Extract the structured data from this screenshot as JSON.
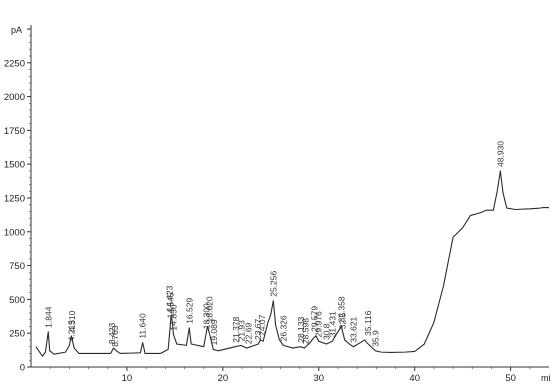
{
  "chart_data": {
    "type": "line",
    "title": "",
    "xlabel": "",
    "ylabel": "",
    "y_unit": "pA",
    "x_unit": "mi",
    "xlim": [
      0,
      54
    ],
    "ylim": [
      0,
      2500
    ],
    "x_ticks": [
      10,
      20,
      30,
      40,
      50
    ],
    "y_ticks": [
      0,
      250,
      500,
      750,
      1000,
      1250,
      1500,
      1750,
      2000,
      2250,
      2500
    ],
    "grid": false,
    "legend": "none",
    "colors": {
      "trace": "#2b2b2b",
      "axis": "#333333",
      "text": "#222222"
    },
    "series": [
      {
        "values": [
          [
            0.5,
            150
          ],
          [
            1.2,
            80
          ],
          [
            1.5,
            110
          ],
          [
            1.8,
            260
          ],
          [
            1.95,
            120
          ],
          [
            2.4,
            95
          ],
          [
            3.6,
            110
          ],
          [
            4.0,
            160
          ],
          [
            4.2,
            230
          ],
          [
            4.5,
            140
          ],
          [
            5.0,
            100
          ],
          [
            8.3,
            100
          ],
          [
            8.6,
            140
          ],
          [
            8.9,
            120
          ],
          [
            9.3,
            100
          ],
          [
            11.4,
            105
          ],
          [
            11.64,
            180
          ],
          [
            11.9,
            100
          ],
          [
            13.5,
            100
          ],
          [
            14.3,
            130
          ],
          [
            14.5,
            290
          ],
          [
            14.6,
            380
          ],
          [
            14.75,
            330
          ],
          [
            14.85,
            240
          ],
          [
            15.2,
            170
          ],
          [
            16.2,
            160
          ],
          [
            16.5,
            290
          ],
          [
            16.7,
            170
          ],
          [
            18.0,
            150
          ],
          [
            18.4,
            300
          ],
          [
            18.6,
            250
          ],
          [
            19.0,
            130
          ],
          [
            19.5,
            120
          ],
          [
            21.3,
            150
          ],
          [
            21.9,
            160
          ],
          [
            22.5,
            140
          ],
          [
            23.7,
            170
          ],
          [
            23.9,
            200
          ],
          [
            24.2,
            190
          ],
          [
            24.7,
            330
          ],
          [
            25.0,
            390
          ],
          [
            25.26,
            490
          ],
          [
            25.5,
            310
          ],
          [
            25.9,
            200
          ],
          [
            26.3,
            160
          ],
          [
            27.3,
            140
          ],
          [
            28.1,
            150
          ],
          [
            28.5,
            140
          ],
          [
            29.1,
            180
          ],
          [
            29.4,
            210
          ],
          [
            29.7,
            230
          ],
          [
            30.0,
            190
          ],
          [
            30.8,
            170
          ],
          [
            31.4,
            190
          ],
          [
            31.9,
            250
          ],
          [
            32.35,
            300
          ],
          [
            32.7,
            200
          ],
          [
            33.2,
            170
          ],
          [
            33.6,
            150
          ],
          [
            34.8,
            200
          ],
          [
            35.0,
            180
          ],
          [
            35.9,
            120
          ],
          [
            36.5,
            110
          ],
          [
            37.5,
            108
          ],
          [
            39.0,
            110
          ],
          [
            40.0,
            115
          ],
          [
            41.0,
            170
          ],
          [
            42.0,
            330
          ],
          [
            43.0,
            600
          ],
          [
            44.0,
            960
          ],
          [
            45.0,
            1030
          ],
          [
            45.8,
            1120
          ],
          [
            46.8,
            1140
          ],
          [
            47.5,
            1160
          ],
          [
            48.2,
            1160
          ],
          [
            48.6,
            1300
          ],
          [
            48.93,
            1450
          ],
          [
            49.2,
            1290
          ],
          [
            49.6,
            1175
          ],
          [
            50.5,
            1165
          ],
          [
            52.0,
            1170
          ],
          [
            53.0,
            1175
          ],
          [
            53.5,
            1180
          ],
          [
            54.0,
            1178
          ]
        ]
      }
    ],
    "annotations": [
      {
        "x": 1.844,
        "y": 260,
        "text": "1.844"
      },
      {
        "x": 4.3,
        "y": 230,
        "text": "4.310"
      },
      {
        "x": 4.215,
        "y": 160,
        "text": "4.215"
      },
      {
        "x": 8.423,
        "y": 140,
        "text": "8.423"
      },
      {
        "x": 8.763,
        "y": 120,
        "text": "8.763"
      },
      {
        "x": 11.64,
        "y": 180,
        "text": "11.640"
      },
      {
        "x": 14.423,
        "y": 380,
        "text": "14.423"
      },
      {
        "x": 14.545,
        "y": 330,
        "text": "14.545"
      },
      {
        "x": 14.85,
        "y": 240,
        "text": "14.850"
      },
      {
        "x": 16.529,
        "y": 290,
        "text": "16.529"
      },
      {
        "x": 18.62,
        "y": 300,
        "text": "18.620"
      },
      {
        "x": 18.3,
        "y": 250,
        "text": "18.300"
      },
      {
        "x": 19.089,
        "y": 130,
        "text": "19.089"
      },
      {
        "x": 21.378,
        "y": 150,
        "text": "21.378"
      },
      {
        "x": 21.93,
        "y": 160,
        "text": "21.93"
      },
      {
        "x": 22.69,
        "y": 140,
        "text": "22.69"
      },
      {
        "x": 23.67,
        "y": 170,
        "text": "23.67"
      },
      {
        "x": 24.07,
        "y": 200,
        "text": "24.07"
      },
      {
        "x": 25.256,
        "y": 490,
        "text": "25.256"
      },
      {
        "x": 26.326,
        "y": 160,
        "text": "26.326"
      },
      {
        "x": 28.133,
        "y": 150,
        "text": "28.133"
      },
      {
        "x": 28.598,
        "y": 140,
        "text": "28.598"
      },
      {
        "x": 29.579,
        "y": 230,
        "text": "29.579"
      },
      {
        "x": 29.976,
        "y": 190,
        "text": "29.976"
      },
      {
        "x": 30.8,
        "y": 170,
        "text": "30.8"
      },
      {
        "x": 31.431,
        "y": 190,
        "text": "31.431"
      },
      {
        "x": 32.358,
        "y": 300,
        "text": "32.358"
      },
      {
        "x": 32.5,
        "y": 250,
        "text": "32.5"
      },
      {
        "x": 33.621,
        "y": 150,
        "text": "33.621"
      },
      {
        "x": 35.116,
        "y": 200,
        "text": "35.116"
      },
      {
        "x": 35.9,
        "y": 120,
        "text": "35.9"
      },
      {
        "x": 48.93,
        "y": 1450,
        "text": "48.930"
      }
    ]
  }
}
